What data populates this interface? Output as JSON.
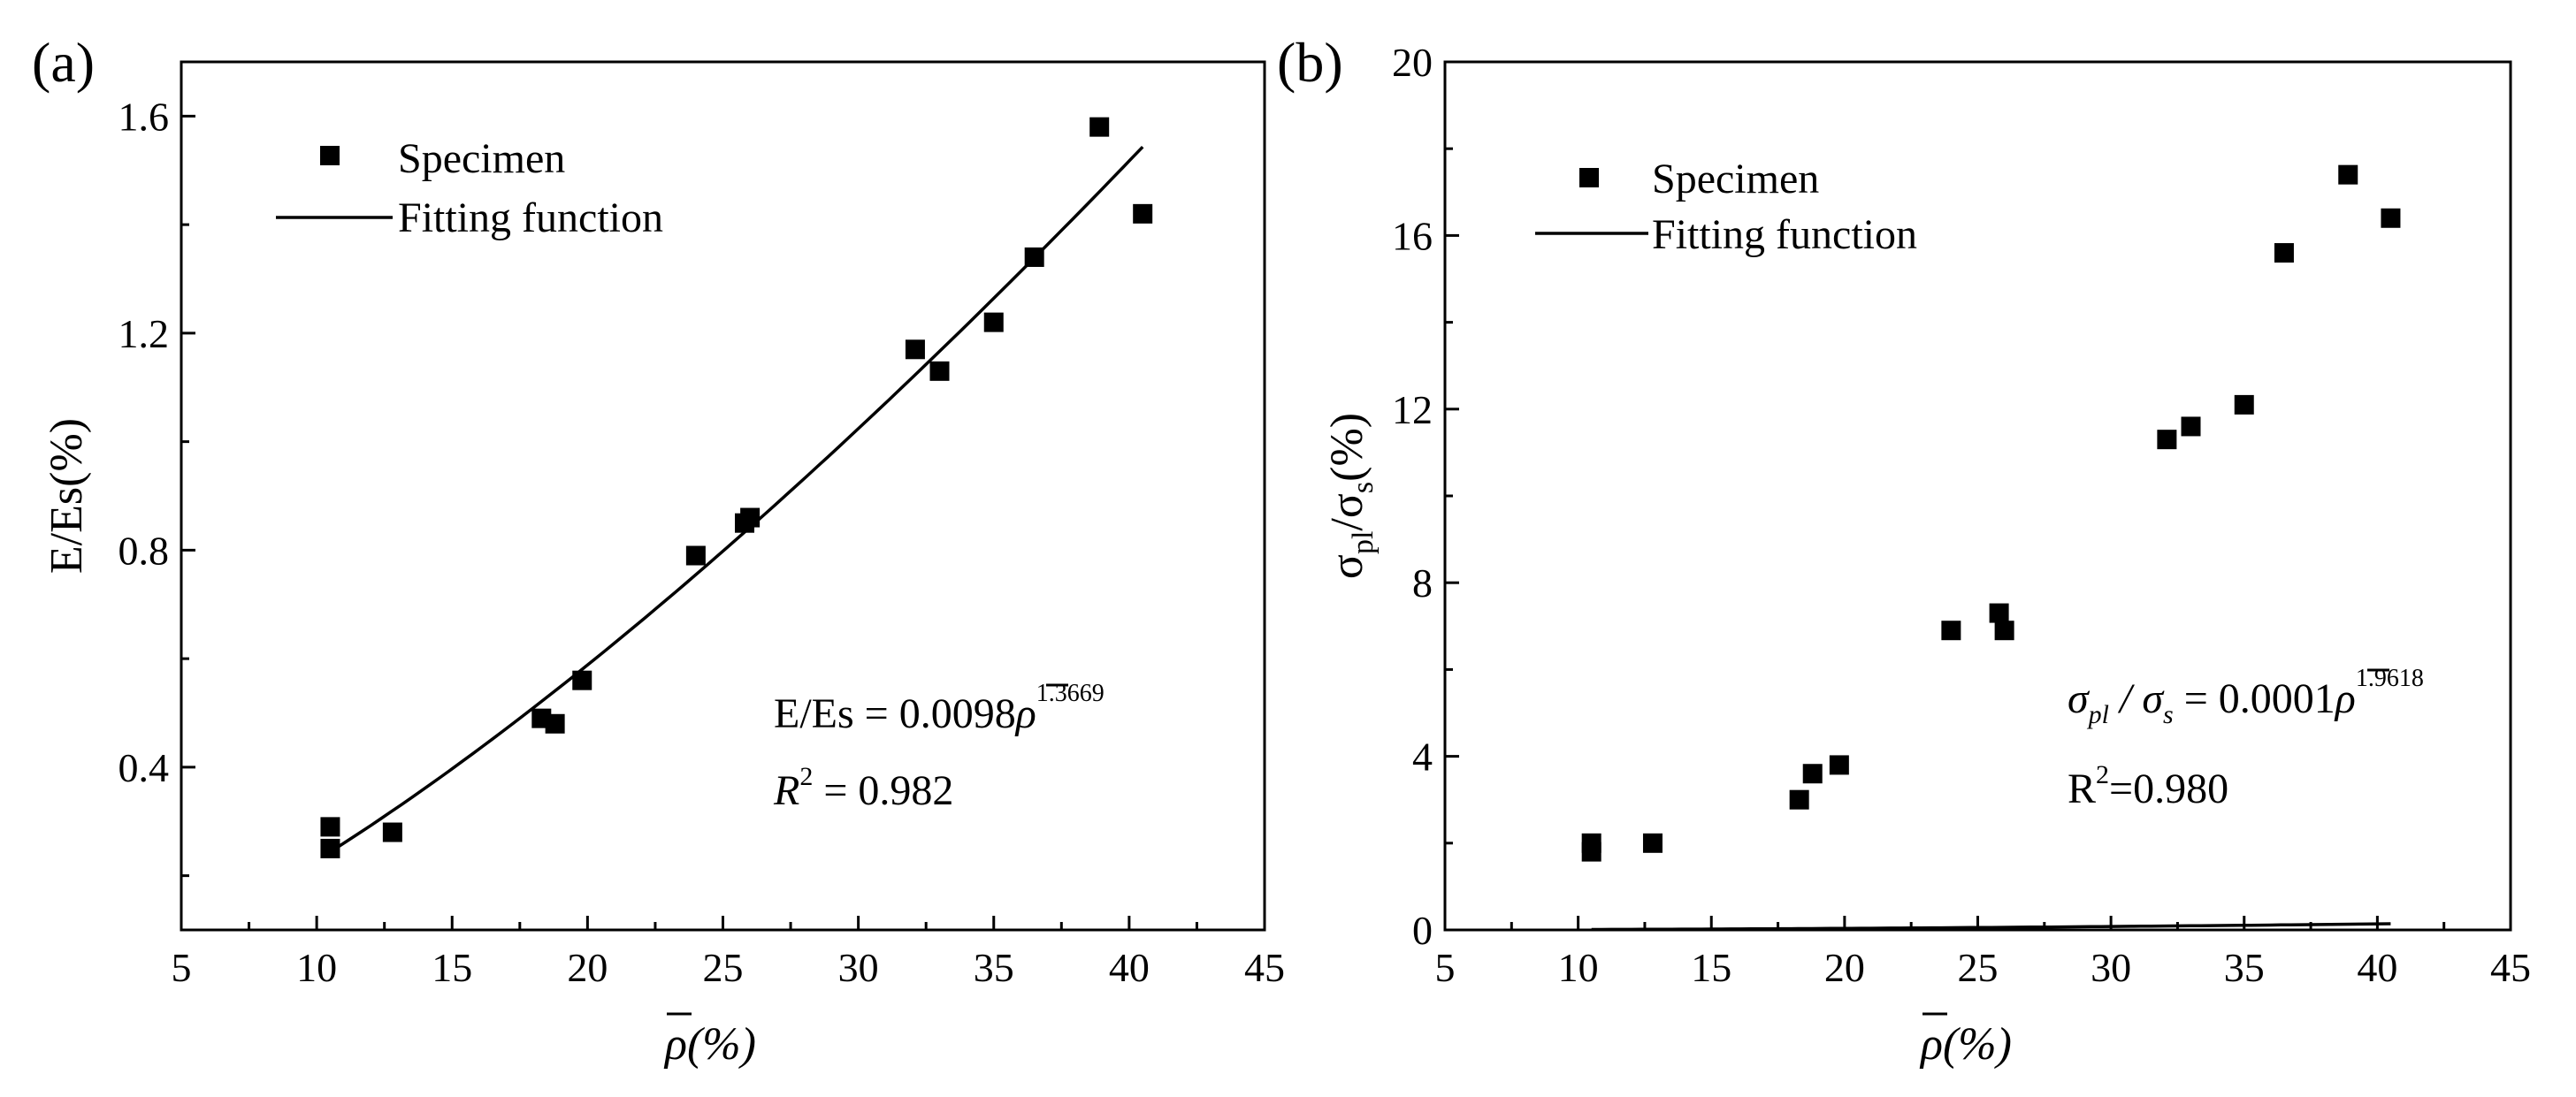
{
  "chart_data": [
    {
      "type": "scatter",
      "panel_label": "(a)",
      "xlabel": "ρ(%)",
      "ylabel": "E/Es(%)",
      "xlim": [
        5,
        45
      ],
      "ylim": [
        0.1,
        1.7
      ],
      "xticks": [
        5,
        10,
        15,
        20,
        25,
        30,
        35,
        40,
        45
      ],
      "yticks": [
        0.4,
        0.8,
        1.2,
        1.6
      ],
      "ytick_decimals": 1,
      "legend_position": "top-left",
      "legend": {
        "points": "Specimen",
        "line": "Fitting function"
      },
      "series": [
        {
          "name": "Specimen",
          "kind": "points",
          "x": [
            10.5,
            10.5,
            12.8,
            18.3,
            18.8,
            19.8,
            24.0,
            25.8,
            26.0,
            32.1,
            33.0,
            35.0,
            36.5,
            38.9,
            40.5
          ],
          "y": [
            0.29,
            0.25,
            0.28,
            0.49,
            0.48,
            0.56,
            0.79,
            0.85,
            0.86,
            1.17,
            1.13,
            1.22,
            1.34,
            1.58,
            1.42
          ]
        },
        {
          "name": "Fitting function",
          "kind": "line",
          "coefficient": 0.0098,
          "exponent": 1.3669,
          "x_range": [
            10.5,
            40.5
          ]
        }
      ],
      "equation": {
        "lhs": "E/Es",
        "eq": " = ",
        "coef": "0.0098",
        "var": "ρ",
        "exp": "1.3669"
      },
      "r2": {
        "label": "R",
        "sup": "2",
        "value": " = 0.982"
      }
    },
    {
      "type": "scatter",
      "panel_label": "(b)",
      "xlabel": "ρ(%)",
      "ylabel": {
        "main": "σ",
        "sub1": "pl",
        "slash": "/σ",
        "sub2": "s",
        "tail": "(%)"
      },
      "xlim": [
        5,
        45
      ],
      "ylim": [
        0,
        20
      ],
      "xticks": [
        5,
        10,
        15,
        20,
        25,
        30,
        35,
        40,
        45
      ],
      "yticks": [
        0,
        4,
        8,
        12,
        16,
        20
      ],
      "ytick_decimals": 0,
      "legend_position": "top-left",
      "legend": {
        "points": "Specimen",
        "line": "Fitting function"
      },
      "series": [
        {
          "name": "Specimen",
          "kind": "points",
          "x": [
            10.5,
            10.5,
            12.8,
            18.3,
            18.8,
            19.8,
            24.0,
            25.8,
            26.0,
            32.1,
            33.0,
            35.0,
            36.5,
            38.9,
            40.5
          ],
          "y": [
            2.0,
            1.8,
            2.0,
            3.0,
            3.6,
            3.8,
            6.9,
            7.3,
            6.9,
            11.3,
            11.6,
            12.1,
            15.6,
            17.4,
            16.4
          ]
        },
        {
          "name": "Fitting function",
          "kind": "line",
          "coefficient": 0.0001,
          "exponent": 1.9618,
          "x_range": [
            10.5,
            40.5
          ]
        }
      ],
      "equation": {
        "lhs": "σ",
        "sub1": "pl",
        "slash": " / σ",
        "sub2": "s",
        "eq": " = 0.0001",
        "var": "ρ",
        "exp": "1.9618"
      },
      "r2": {
        "label": "R",
        "sup": "2",
        "value": "=0.980"
      }
    }
  ]
}
